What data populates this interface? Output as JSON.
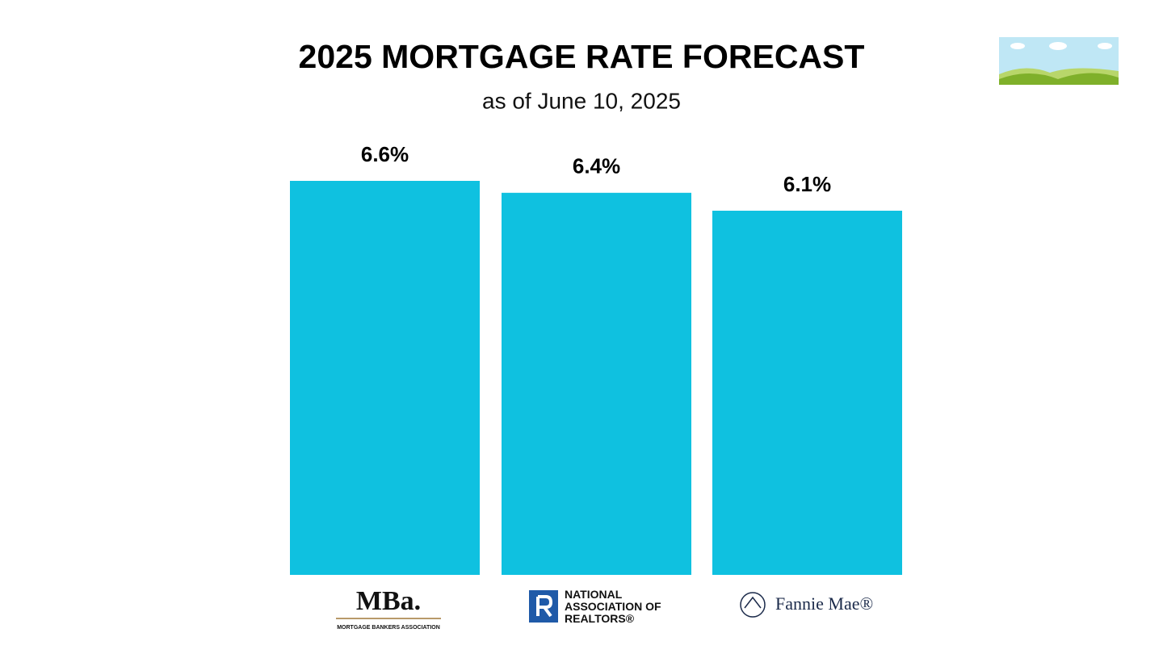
{
  "chart_data": {
    "type": "bar",
    "title": "2025 MORTGAGE RATE FORECAST",
    "subtitle": "as of June 10, 2025",
    "categories": [
      "MBa.",
      "NATIONAL ASSOCIATION OF REALTORS®",
      "Fannie Mae®"
    ],
    "mba_tagline": "MORTGAGE BANKERS ASSOCIATION",
    "values": [
      6.6,
      6.4,
      6.1
    ],
    "value_labels": [
      "6.6%",
      "6.4%",
      "6.1%"
    ],
    "color": "#0fc1e0"
  }
}
